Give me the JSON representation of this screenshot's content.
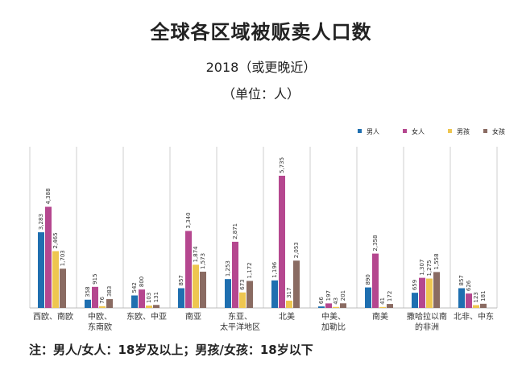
{
  "page": {
    "title": "全球各区域被贩卖人口数",
    "subtitle": "2018（或更晚近）",
    "unit": "（单位：人）",
    "note": "注：男人/女人：18岁及以上；男孩/女孩：18岁以下"
  },
  "chart_data": {
    "type": "bar",
    "categories": [
      [
        "西欧、南欧"
      ],
      [
        "中欧、",
        "东南欧"
      ],
      [
        "东欧、中亚"
      ],
      [
        "南亚"
      ],
      [
        "东亚、",
        "太平洋地区"
      ],
      [
        "北美"
      ],
      [
        "中美、",
        "加勒比"
      ],
      [
        "南美"
      ],
      [
        "撒哈拉以南",
        "的非洲"
      ],
      [
        "北非、中东"
      ]
    ],
    "series": [
      {
        "name": "男人",
        "color": "#1f6fb0",
        "values": [
          3283,
          358,
          542,
          857,
          1253,
          1196,
          66,
          890,
          659,
          857
        ],
        "labels": [
          "3,283",
          "358",
          "542",
          "857",
          "1,253",
          "1,196",
          "66",
          "890",
          "659",
          "857"
        ]
      },
      {
        "name": "女人",
        "color": "#b5478f",
        "values": [
          4388,
          915,
          800,
          3340,
          2871,
          5735,
          197,
          2358,
          1307,
          626
        ],
        "labels": [
          "4,388",
          "915",
          "800",
          "3,340",
          "2,871",
          "5,735",
          "197",
          "2,358",
          "1,307",
          "626"
        ]
      },
      {
        "name": "男孩",
        "color": "#eec650",
        "values": [
          2465,
          76,
          103,
          1874,
          673,
          317,
          43,
          41,
          1275,
          123
        ],
        "labels": [
          "2,465",
          "76",
          "103",
          "1,874",
          "673",
          "317",
          "43",
          "41",
          "1,275",
          "123"
        ]
      },
      {
        "name": "女孩",
        "color": "#8a6b62",
        "values": [
          1703,
          383,
          131,
          1573,
          1172,
          2053,
          201,
          172,
          1558,
          181
        ],
        "labels": [
          "1,703",
          "383",
          "131",
          "1,573",
          "1,172",
          "2,053",
          "201",
          "172",
          "1,558",
          "181"
        ]
      }
    ],
    "ylim": [
      0,
      6000
    ],
    "legend_position": "top-right",
    "grid": false
  }
}
